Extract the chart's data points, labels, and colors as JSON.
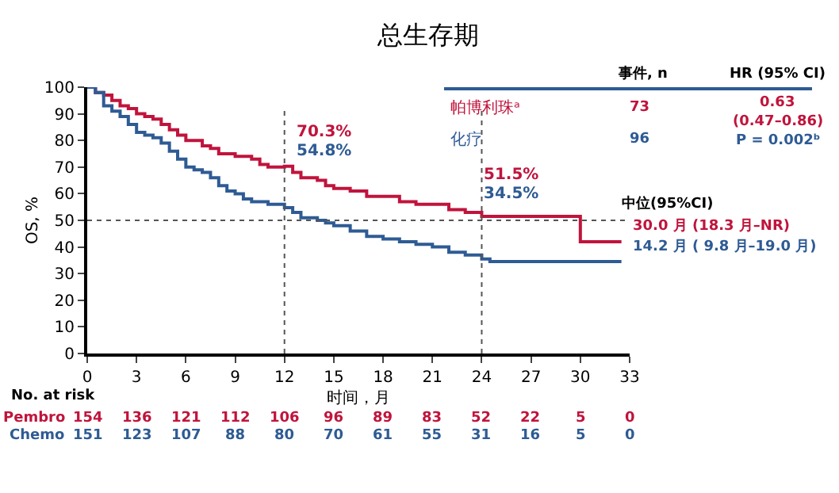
{
  "chart_data": {
    "type": "step",
    "title": "总生存期",
    "xlabel": "时间，月",
    "ylabel": "OS, %",
    "xlim": [
      0,
      33
    ],
    "xticks": [
      0,
      3,
      6,
      9,
      12,
      15,
      18,
      21,
      24,
      27,
      30,
      33
    ],
    "ylim": [
      0,
      100
    ],
    "yticks": [
      0,
      10,
      20,
      30,
      40,
      50,
      60,
      70,
      80,
      90,
      100
    ],
    "legend": false,
    "marker": "none",
    "line_style": "solid",
    "series": [
      {
        "name": "帕博利珠ᵃ",
        "color": "#c0143c",
        "x": [
          0,
          0.5,
          1,
          1.5,
          2,
          2.5,
          3,
          3.5,
          4,
          4.5,
          5,
          5.5,
          6,
          6.5,
          7,
          7.5,
          8,
          9,
          10,
          10.5,
          11,
          12,
          12.5,
          13,
          14,
          14.5,
          15,
          16,
          17,
          18,
          19,
          20,
          21,
          22,
          23,
          24,
          25,
          29.5,
          30,
          32.5
        ],
        "values": [
          100,
          98,
          97,
          95,
          93,
          92,
          90,
          89,
          88,
          86,
          84,
          82,
          80,
          80,
          78,
          77,
          75,
          74,
          73,
          71,
          70,
          70.3,
          68,
          66,
          65,
          63,
          62,
          61,
          59,
          59,
          57,
          56,
          56,
          54,
          53,
          51.5,
          51.5,
          51.5,
          42,
          42
        ]
      },
      {
        "name": "化疗",
        "color": "#2e5b94",
        "x": [
          0,
          0.5,
          1,
          1.5,
          2,
          2.5,
          3,
          3.5,
          4,
          4.5,
          5,
          5.5,
          6,
          6.5,
          7,
          7.5,
          8,
          8.5,
          9,
          9.5,
          10,
          11,
          12,
          12.5,
          13,
          14,
          14.5,
          15,
          16,
          17,
          18,
          19,
          20,
          21,
          22,
          23,
          24,
          24.5,
          32.5
        ],
        "values": [
          100,
          98,
          93,
          91,
          89,
          86,
          83,
          82,
          81,
          79,
          76,
          73,
          70,
          69,
          68,
          66,
          63,
          61,
          60,
          58,
          57,
          56,
          54.8,
          53,
          51,
          50,
          49,
          48,
          46,
          44,
          43,
          42,
          41,
          40,
          38,
          37,
          35.5,
          34.5,
          34.5
        ]
      }
    ],
    "ref_lines": [
      {
        "axis": "x",
        "value": 12,
        "color": "#555555",
        "line_style": "dotted"
      },
      {
        "axis": "x",
        "value": 24,
        "color": "#555555",
        "line_style": "dotted"
      },
      {
        "axis": "y",
        "value": 50,
        "color": "#555555",
        "line_style": "dotted"
      }
    ],
    "annotations": [
      "70.3%",
      "54.8%",
      "51.5%",
      "34.5%",
      "事件, n",
      "HR (95% CI)",
      "73",
      "0.63",
      "(0.47–0.86)",
      "96",
      "P = 0.002ᵇ",
      "中位(95%CI)",
      "30.0 月 (18.3 月–NR)",
      "14.2 月 ( 9.8 月–19.0 月)",
      "No. at risk",
      "Pembro",
      "154",
      "136",
      "121",
      "112",
      "106",
      "96",
      "89",
      "83",
      "52",
      "22",
      "5",
      "0",
      "Chemo",
      "151",
      "123",
      "107",
      "88",
      "80",
      "70",
      "61",
      "55",
      "31",
      "16",
      "5",
      "0"
    ]
  }
}
